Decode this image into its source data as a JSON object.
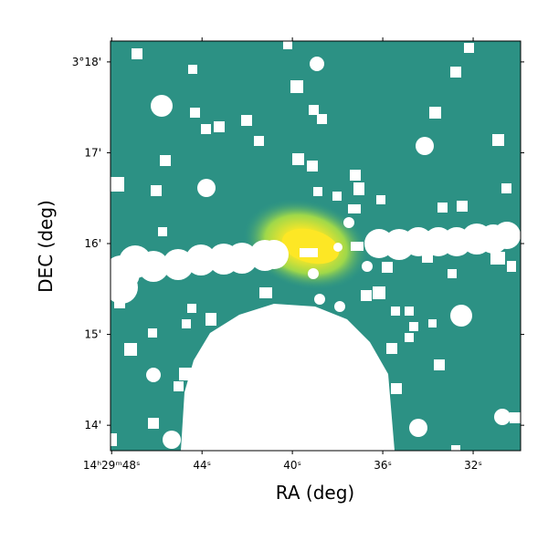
{
  "chart_data": {
    "type": "image",
    "xlabel": "RA (deg)",
    "ylabel": "DEC (deg)",
    "xlim": [
      217.45021,
      217.37458
    ],
    "ylim": [
      3.22867,
      3.30383
    ],
    "xticks": [
      {
        "value": 217.45,
        "label": "14ʰ29ᵐ48ˢ"
      },
      {
        "value": 217.43333,
        "label": "44ˢ"
      },
      {
        "value": 217.41667,
        "label": "40ˢ"
      },
      {
        "value": 217.4,
        "label": "36ˢ"
      },
      {
        "value": 217.38333,
        "label": "32ˢ"
      }
    ],
    "yticks": [
      {
        "value": 3.23333,
        "label": "14'"
      },
      {
        "value": 3.25,
        "label": "15'"
      },
      {
        "value": 3.26667,
        "label": "16'"
      },
      {
        "value": 3.28333,
        "label": "17'"
      },
      {
        "value": 3.3,
        "label": "3°18'"
      }
    ]
  }
}
